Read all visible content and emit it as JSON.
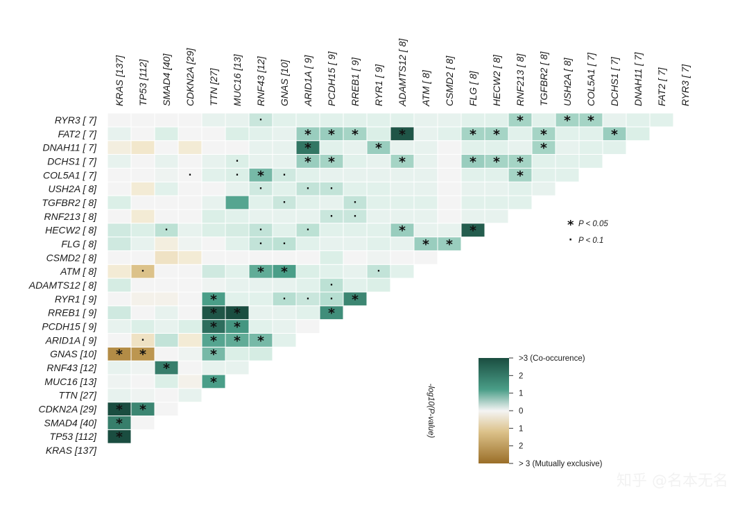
{
  "chart_data": {
    "type": "heatmap",
    "title": "",
    "genes": [
      "KRAS [137]",
      "TP53 [112]",
      "SMAD4 [40]",
      "CDKN2A [29]",
      "TTN [27]",
      "MUC16 [13]",
      "RNF43 [12]",
      "GNAS [10]",
      "ARID1A [ 9]",
      "PCDH15 [ 9]",
      "RREB1 [ 9]",
      "RYR1 [ 9]",
      "ADAMTS12 [ 8]",
      "ATM [ 8]",
      "CSMD2 [ 8]",
      "FLG [ 8]",
      "HECW2 [ 8]",
      "RNF213 [ 8]",
      "TGFBR2 [ 8]",
      "USH2A [ 8]",
      "COL5A1 [ 7]",
      "DCHS1 [ 7]",
      "DNAH11 [ 7]",
      "FAT2 [ 7]",
      "RYR3 [ 7]"
    ],
    "value_description": "signed -log10(P-value): positive = co-occurrence, negative = mutual exclusivity; cells[i] = values of row gene i against column genes 0..i-1",
    "cells": [
      [],
      [
        3.2
      ],
      [
        2.4,
        0.0
      ],
      [
        3.2,
        2.3,
        0.0
      ],
      [
        0.2,
        0.1,
        0.0,
        0.2
      ],
      [
        0.1,
        0.0,
        0.4,
        -0.1,
        2.0
      ],
      [
        0.2,
        0.1,
        2.4,
        0.0,
        0.2,
        0.2
      ],
      [
        -2.4,
        -2.2,
        0.0,
        0.1,
        1.6,
        0.4,
        0.5
      ],
      [
        0.0,
        -0.5,
        0.8,
        -0.3,
        1.9,
        1.8,
        1.6,
        0.3
      ],
      [
        0.2,
        0.4,
        0.2,
        0.4,
        2.6,
        2.1,
        0.3,
        0.2,
        0.0
      ],
      [
        0.6,
        0.0,
        0.2,
        0.0,
        2.9,
        3.1,
        0.2,
        0.2,
        0.3,
        2.2
      ],
      [
        0.0,
        -0.1,
        -0.1,
        0.0,
        2.0,
        0.3,
        0.3,
        1.0,
        0.7,
        1.0,
        2.3
      ],
      [
        0.5,
        0.0,
        0.0,
        0.0,
        0.1,
        0.2,
        0.2,
        0.2,
        0.3,
        0.9,
        0.3,
        0.4
      ],
      [
        -0.3,
        -1.2,
        0.0,
        0.0,
        0.6,
        0.3,
        1.8,
        2.0,
        0.4,
        0.3,
        0.2,
        0.8,
        0.3
      ],
      [
        0.0,
        0.0,
        -0.5,
        -0.3,
        0.0,
        0.0,
        0.0,
        0.0,
        0.0,
        0.4,
        0.0,
        0.1,
        0.0,
        0.0
      ],
      [
        0.6,
        0.2,
        -0.2,
        0.1,
        0.0,
        0.3,
        0.8,
        0.9,
        0.3,
        0.2,
        0.2,
        0.3,
        0.2,
        1.3,
        1.3
      ],
      [
        0.6,
        0.4,
        0.9,
        0.2,
        0.4,
        0.5,
        0.8,
        0.3,
        0.9,
        0.3,
        0.3,
        0.3,
        1.3,
        0.2,
        0.2,
        2.8
      ],
      [
        0.0,
        -0.3,
        0.0,
        0.0,
        0.4,
        0.3,
        0.2,
        0.2,
        0.2,
        0.7,
        0.7,
        0.2,
        0.2,
        0.2,
        0.0,
        0.2,
        0.2
      ],
      [
        0.4,
        0.0,
        0.0,
        0.0,
        0.2,
        1.9,
        0.3,
        0.7,
        0.3,
        0.2,
        0.8,
        0.3,
        0.3,
        0.3,
        0.0,
        0.3,
        0.3,
        0.3
      ],
      [
        0.0,
        -0.3,
        0.3,
        0.0,
        0.0,
        0.2,
        0.6,
        0.3,
        0.8,
        0.8,
        0.3,
        0.3,
        0.2,
        0.2,
        0.0,
        0.2,
        0.2,
        0.3,
        0.2
      ],
      [
        0.0,
        0.0,
        0.1,
        0.0,
        0.3,
        0.4,
        1.6,
        0.6,
        0.3,
        0.2,
        0.2,
        0.2,
        0.2,
        0.2,
        0.0,
        0.3,
        0.3,
        1.2,
        0.3,
        0.3
      ],
      [
        0.2,
        0.0,
        0.2,
        0.0,
        0.2,
        0.4,
        0.2,
        0.2,
        1.3,
        1.2,
        0.3,
        0.2,
        1.2,
        0.2,
        0.0,
        1.3,
        1.2,
        1.2,
        0.3,
        0.3,
        0.3
      ],
      [
        -0.2,
        -0.4,
        0.0,
        -0.3,
        0.0,
        0.0,
        0.2,
        0.2,
        2.5,
        0.3,
        0.2,
        1.3,
        0.2,
        0.2,
        0.0,
        0.3,
        0.3,
        0.2,
        1.2,
        0.2,
        0.3,
        0.3
      ],
      [
        0.2,
        0.0,
        0.4,
        0.0,
        0.0,
        0.4,
        0.3,
        0.2,
        1.3,
        1.3,
        1.2,
        0.4,
        2.9,
        0.2,
        0.3,
        1.2,
        1.2,
        0.3,
        1.2,
        0.3,
        0.3,
        1.3,
        0.4
      ],
      [
        0.0,
        0.0,
        0.0,
        0.0,
        0.2,
        0.2,
        0.7,
        0.3,
        0.3,
        0.3,
        0.3,
        0.3,
        0.3,
        0.2,
        0.2,
        0.3,
        0.3,
        1.2,
        0.3,
        1.2,
        1.2,
        0.2,
        0.3,
        0.3
      ]
    ],
    "significance": {
      "star": [
        [
          1,
          0
        ],
        [
          3,
          0
        ],
        [
          3,
          1
        ],
        [
          2,
          0
        ],
        [
          6,
          2
        ],
        [
          7,
          0
        ],
        [
          7,
          1
        ],
        [
          7,
          4
        ],
        [
          5,
          4
        ],
        [
          8,
          4
        ],
        [
          8,
          5
        ],
        [
          8,
          6
        ],
        [
          9,
          4
        ],
        [
          9,
          5
        ],
        [
          10,
          4
        ],
        [
          10,
          5
        ],
        [
          10,
          9
        ],
        [
          11,
          4
        ],
        [
          11,
          10
        ],
        [
          13,
          6
        ],
        [
          13,
          7
        ],
        [
          15,
          13
        ],
        [
          15,
          14
        ],
        [
          16,
          15
        ],
        [
          16,
          12
        ],
        [
          20,
          6
        ],
        [
          20,
          17
        ],
        [
          21,
          8
        ],
        [
          21,
          9
        ],
        [
          21,
          12
        ],
        [
          21,
          15
        ],
        [
          21,
          16
        ],
        [
          21,
          17
        ],
        [
          22,
          8
        ],
        [
          22,
          11
        ],
        [
          22,
          18
        ],
        [
          23,
          8
        ],
        [
          23,
          9
        ],
        [
          23,
          10
        ],
        [
          23,
          12
        ],
        [
          23,
          15
        ],
        [
          23,
          16
        ],
        [
          23,
          18
        ],
        [
          23,
          21
        ],
        [
          24,
          17
        ],
        [
          24,
          19
        ],
        [
          24,
          20
        ]
      ],
      "dot": [
        [
          8,
          1
        ],
        [
          13,
          1
        ],
        [
          11,
          7
        ],
        [
          11,
          8
        ],
        [
          11,
          9
        ],
        [
          13,
          11
        ],
        [
          12,
          9
        ],
        [
          15,
          6
        ],
        [
          15,
          7
        ],
        [
          16,
          2
        ],
        [
          16,
          6
        ],
        [
          16,
          8
        ],
        [
          17,
          9
        ],
        [
          17,
          10
        ],
        [
          18,
          7
        ],
        [
          18,
          10
        ],
        [
          19,
          6
        ],
        [
          19,
          8
        ],
        [
          19,
          9
        ],
        [
          20,
          3
        ],
        [
          20,
          5
        ],
        [
          20,
          7
        ],
        [
          21,
          5
        ],
        [
          24,
          6
        ]
      ]
    },
    "colorbar": {
      "label": "-log10(P-value)",
      "range": [
        -3,
        3
      ],
      "ticks": [
        ">3 (Co-occurence)",
        "2",
        "1",
        "0",
        "1",
        "2",
        "> 3 (Mutually exclusive)"
      ],
      "colors": {
        "co_occurrence_high": "#1a4d40",
        "co_occurrence_mid": "#4a9e88",
        "neutral": "#f4f4f4",
        "exclusive_mid": "#dcc28a",
        "exclusive_high": "#9a6e28"
      }
    },
    "legend": {
      "star": "P < 0.05",
      "dot": "P < 0.1",
      "star_symbol": "*",
      "dot_symbol": "·"
    }
  },
  "watermark": "知乎 @名本无名"
}
